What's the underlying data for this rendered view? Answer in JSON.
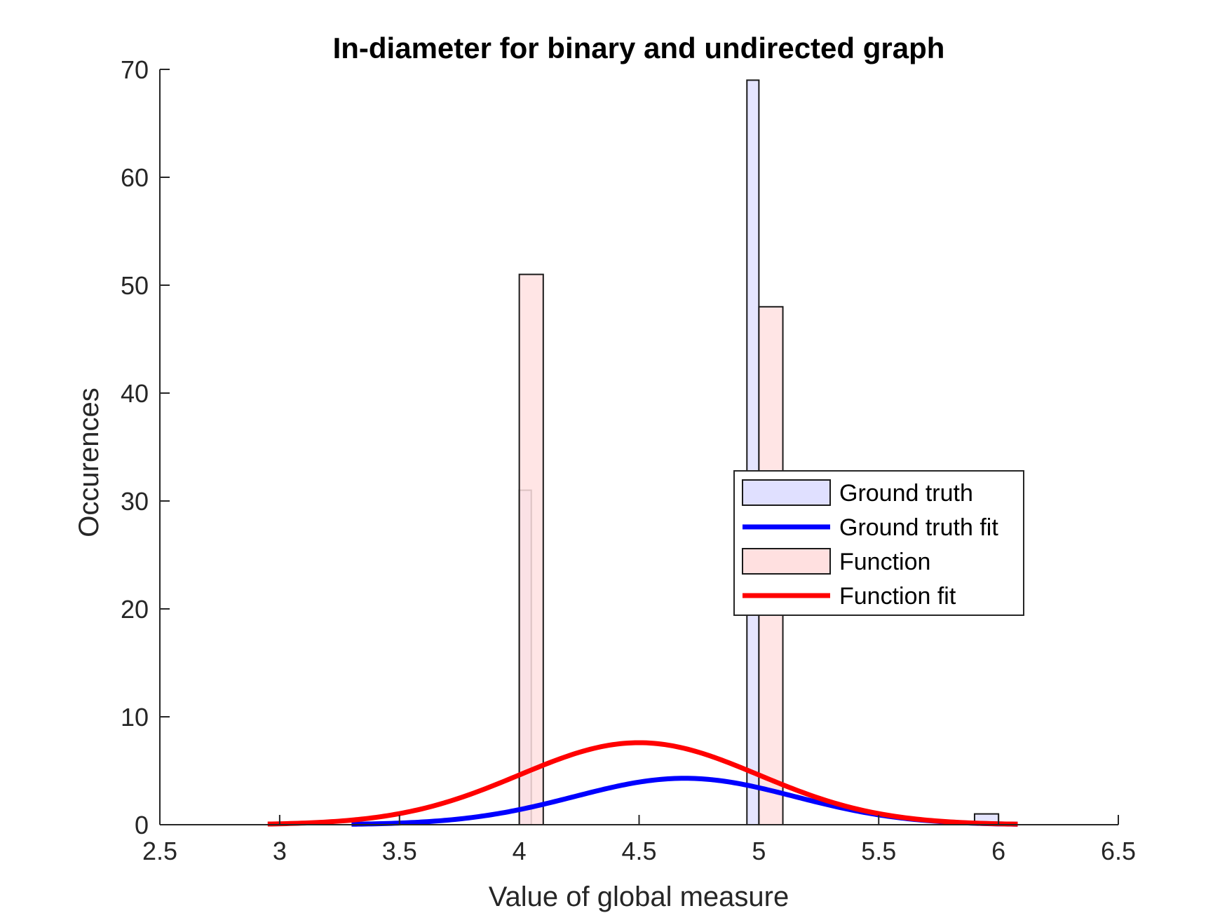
{
  "chart_data": {
    "type": "bar",
    "title": "In-diameter for binary and undirected graph",
    "xlabel": "Value of global measure",
    "ylabel": "Occurences",
    "xlim": [
      2.5,
      6.5
    ],
    "ylim": [
      0,
      70
    ],
    "xticks": [
      2.5,
      3,
      3.5,
      4,
      4.5,
      5,
      5.5,
      6,
      6.5
    ],
    "xtick_labels": [
      "2.5",
      "3",
      "3.5",
      "4",
      "4.5",
      "5",
      "5.5",
      "6",
      "6.5"
    ],
    "yticks": [
      0,
      10,
      20,
      30,
      40,
      50,
      60,
      70
    ],
    "ytick_labels": [
      "0",
      "10",
      "20",
      "30",
      "40",
      "50",
      "60",
      "70"
    ],
    "grid": false,
    "legend_position": "right",
    "series": [
      {
        "name": "Ground truth",
        "kind": "histogram",
        "color": "#e0e0ff",
        "bars": [
          {
            "x0": 4.0,
            "x1": 4.05,
            "count": 31
          },
          {
            "x0": 4.95,
            "x1": 5.0,
            "count": 69
          },
          {
            "x0": 5.9,
            "x1": 6.0,
            "count": 1
          }
        ]
      },
      {
        "name": "Ground truth fit",
        "kind": "normal-fit",
        "color": "#0000ff",
        "mean": 4.69,
        "sigma": 0.46,
        "peak": 4.3,
        "x_range": [
          3.3,
          6.08
        ]
      },
      {
        "name": "Function",
        "kind": "histogram",
        "color": "#ffe0e0",
        "bars": [
          {
            "x0": 4.0,
            "x1": 4.1,
            "count": 51
          },
          {
            "x0": 5.0,
            "x1": 5.1,
            "count": 48
          }
        ]
      },
      {
        "name": "Function fit",
        "kind": "normal-fit",
        "color": "#ff0000",
        "mean": 4.5,
        "sigma": 0.5,
        "peak": 7.6,
        "x_range": [
          2.95,
          6.08
        ]
      }
    ]
  }
}
